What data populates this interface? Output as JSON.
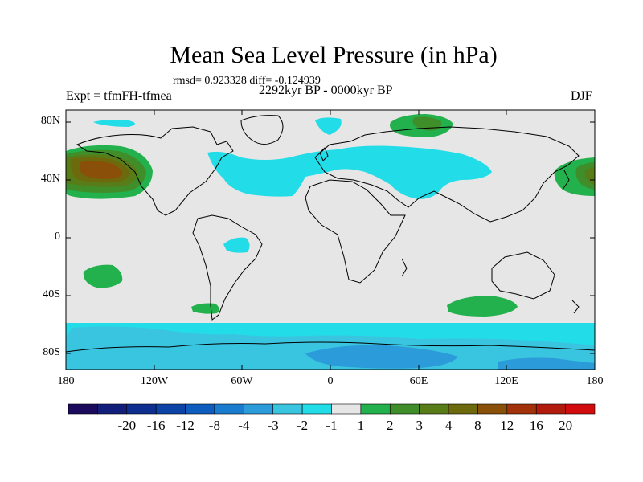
{
  "title": "Mean Sea Level Pressure (in hPa)",
  "stats": "rmsd= 0.923328 diff= -0.124939",
  "experiment": "Expt = tfmFH-tfmea",
  "period": "2292kyr BP - 0000kyr BP",
  "season": "DJF",
  "y_axis": [
    "80N",
    "40N",
    "0",
    "40S",
    "80S"
  ],
  "x_axis": [
    "180",
    "120W",
    "60W",
    "0",
    "60E",
    "120E",
    "180"
  ],
  "colorbar": {
    "labels": [
      "-20",
      "-16",
      "-12",
      "-8",
      "-4",
      "-3",
      "-2",
      "-1",
      "1",
      "2",
      "3",
      "4",
      "8",
      "12",
      "16",
      "20"
    ],
    "colors": [
      "#1c0a5c",
      "#121f7a",
      "#0f2f90",
      "#0b43a6",
      "#0e5cbd",
      "#1a7ccf",
      "#2b9bd9",
      "#39c4e0",
      "#22dde8",
      "#e6e6e6",
      "#22b14c",
      "#3f8e2a",
      "#587c18",
      "#6c6a0c",
      "#8a4f08",
      "#a1320a",
      "#b21a0c",
      "#d20c0c"
    ]
  },
  "map_colors": {
    "background": "#e6e6e6",
    "neg_light": "#22dde8",
    "neg_mid": "#39c4e0",
    "neg_dark": "#2b9bd9",
    "pos_light": "#22b14c",
    "pos_mid": "#3f8e2a",
    "pos_dark": "#587c18",
    "pos_darker": "#6c6a0c",
    "pos_darkest": "#8a4f08"
  }
}
